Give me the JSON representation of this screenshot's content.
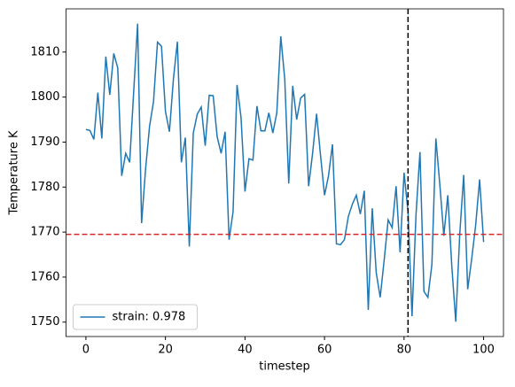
{
  "chart_data": {
    "type": "line",
    "xlabel": "timestep",
    "ylabel": "Temperature K",
    "x": [
      0,
      1,
      2,
      3,
      4,
      5,
      6,
      7,
      8,
      9,
      10,
      11,
      12,
      13,
      14,
      15,
      16,
      17,
      18,
      19,
      20,
      21,
      22,
      23,
      24,
      25,
      26,
      27,
      28,
      29,
      30,
      31,
      32,
      33,
      34,
      35,
      36,
      37,
      38,
      39,
      40,
      41,
      42,
      43,
      44,
      45,
      46,
      47,
      48,
      49,
      50,
      51,
      52,
      53,
      54,
      55,
      56,
      57,
      58,
      59,
      60,
      61,
      62,
      63,
      64,
      65,
      66,
      67,
      68,
      69,
      70,
      71,
      72,
      73,
      74,
      75,
      76,
      77,
      78,
      79,
      80,
      81,
      82,
      83,
      84,
      85,
      86,
      87,
      88,
      89,
      90,
      91,
      92,
      93,
      94,
      95,
      96,
      97,
      98,
      99,
      100
    ],
    "series": [
      {
        "name": "strain: 0.978",
        "color": "#1f77b4",
        "values": [
          1792.8,
          1792.6,
          1790.6,
          1801,
          1790.8,
          1809,
          1800.5,
          1809.7,
          1806.5,
          1782.5,
          1787.5,
          1785.5,
          1801,
          1816.3,
          1772,
          1784,
          1793.5,
          1799,
          1812.2,
          1811.3,
          1796.8,
          1792.3,
          1804,
          1812.3,
          1785.5,
          1791,
          1766.8,
          1792,
          1796.2,
          1797.8,
          1789.2,
          1800.4,
          1800.3,
          1791.2,
          1787.5,
          1792.3,
          1768.3,
          1774.5,
          1802.7,
          1795.5,
          1779,
          1786.3,
          1786,
          1798,
          1792.5,
          1792.5,
          1796.5,
          1792,
          1796.5,
          1813.5,
          1804,
          1780.8,
          1802.5,
          1795,
          1799.8,
          1800.6,
          1780.2,
          1787.5,
          1796.3,
          1787,
          1778.2,
          1782.5,
          1789.5,
          1767.4,
          1767.2,
          1768.3,
          1773.5,
          1776.2,
          1778.2,
          1774,
          1779.2,
          1752.7,
          1775.3,
          1761,
          1755.5,
          1763.8,
          1772.7,
          1771,
          1780.2,
          1765.5,
          1783.2,
          1774.5,
          1751.3,
          1773.8,
          1787.8,
          1756.8,
          1755.5,
          1762.8,
          1790.8,
          1780.5,
          1769.2,
          1778.2,
          1762.5,
          1750.1,
          1769.5,
          1782.7,
          1757.3,
          1764,
          1771.5,
          1781.7,
          1767.8
        ]
      }
    ],
    "hlines": [
      {
        "value": 1769.5,
        "color": "#d62728"
      }
    ],
    "vlines": [
      {
        "value": 81,
        "color": "#000000"
      }
    ],
    "xlim": [
      -5,
      105
    ],
    "xticks": [
      0,
      20,
      40,
      60,
      80,
      100
    ],
    "ylim": [
      1746.8,
      1819.6
    ],
    "yticks": [
      1750,
      1760,
      1770,
      1780,
      1790,
      1800,
      1810
    ],
    "legend": "lower left"
  }
}
